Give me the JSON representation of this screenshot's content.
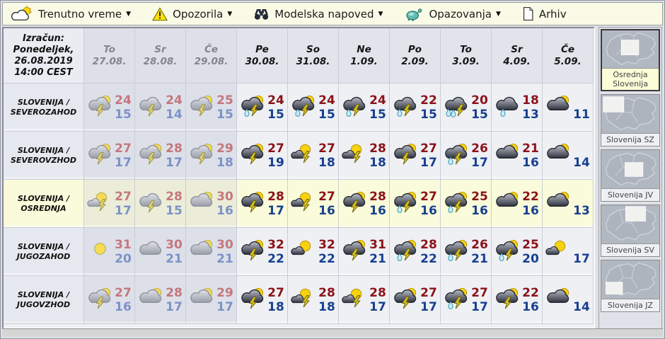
{
  "toolbar": {
    "items": [
      {
        "label": "Trenutno vreme",
        "icon": "sun-cloud-icon",
        "arrow": true
      },
      {
        "label": "Opozorila",
        "icon": "warning-icon",
        "arrow": true
      },
      {
        "label": "Modelska napoved",
        "icon": "binoculars-icon",
        "arrow": true
      },
      {
        "label": "Opazovanja",
        "icon": "observations-icon",
        "arrow": true
      },
      {
        "label": "Arhiv",
        "icon": "document-icon",
        "arrow": false
      }
    ]
  },
  "forecast": {
    "calc": {
      "lines": [
        "Izračun:",
        "Ponedeljek,",
        "26.08.2019",
        "14:00 CEST"
      ]
    },
    "days": [
      {
        "name": "To",
        "date": "27.08.",
        "past": true
      },
      {
        "name": "Sr",
        "date": "28.08.",
        "past": true
      },
      {
        "name": "Če",
        "date": "29.08.",
        "past": true
      },
      {
        "name": "Pe",
        "date": "30.08.",
        "past": false
      },
      {
        "name": "So",
        "date": "31.08.",
        "past": false
      },
      {
        "name": "Ne",
        "date": "1.09.",
        "past": false
      },
      {
        "name": "Po",
        "date": "2.09.",
        "past": false
      },
      {
        "name": "To",
        "date": "3.09.",
        "past": false
      },
      {
        "name": "Sr",
        "date": "4.09.",
        "past": false
      },
      {
        "name": "Če",
        "date": "5.09.",
        "past": false
      }
    ],
    "rows": [
      {
        "region": "SLOVENIJA / SEVEROZAHOD",
        "highlight": false,
        "cells": [
          {
            "icon": "cloud-sun-lightning",
            "hi": 24,
            "lo": 15
          },
          {
            "icon": "cloud-lightning",
            "hi": 24,
            "lo": 14
          },
          {
            "icon": "cloud-sun-lightning",
            "hi": 25,
            "lo": 15
          },
          {
            "icon": "cloud-sun-rain-lightning",
            "hi": 24,
            "lo": 15
          },
          {
            "icon": "cloud-sun-rain-lightning",
            "hi": 24,
            "lo": 15
          },
          {
            "icon": "cloud-rain-lightning",
            "hi": 24,
            "lo": 15
          },
          {
            "icon": "cloud-rain-lightning",
            "hi": 22,
            "lo": 15
          },
          {
            "icon": "cloud-heavy-rain-lightning",
            "hi": 20,
            "lo": 15
          },
          {
            "icon": "cloud-rain",
            "hi": 18,
            "lo": 13
          },
          {
            "icon": "cloud-sun",
            "hi": null,
            "lo": 11
          }
        ]
      },
      {
        "region": "SLOVENIJA / SEVEROVZHOD",
        "highlight": false,
        "cells": [
          {
            "icon": "cloud-sun-lightning",
            "hi": 27,
            "lo": 17
          },
          {
            "icon": "cloud-sun-lightning",
            "hi": 28,
            "lo": 17
          },
          {
            "icon": "cloud-sun-lightning",
            "hi": 29,
            "lo": 18
          },
          {
            "icon": "cloud-sun-lightning",
            "hi": 27,
            "lo": 19
          },
          {
            "icon": "sun-cloud-lightning",
            "hi": 27,
            "lo": 18
          },
          {
            "icon": "sun-cloud-lightning",
            "hi": 28,
            "lo": 18
          },
          {
            "icon": "cloud-sun-lightning",
            "hi": 27,
            "lo": 17
          },
          {
            "icon": "cloud-sun-rain-lightning",
            "hi": 26,
            "lo": 17
          },
          {
            "icon": "cloud-sun",
            "hi": 21,
            "lo": 16
          },
          {
            "icon": "cloud-sun",
            "hi": null,
            "lo": 14
          }
        ]
      },
      {
        "region": "SLOVENIJA / OSREDNJA",
        "highlight": true,
        "cells": [
          {
            "icon": "sun-cloud-lightning",
            "hi": 27,
            "lo": 17
          },
          {
            "icon": "cloud-lightning",
            "hi": 28,
            "lo": 15
          },
          {
            "icon": "cloud-sun",
            "hi": 30,
            "lo": 16
          },
          {
            "icon": "cloud-sun-lightning",
            "hi": 28,
            "lo": 17
          },
          {
            "icon": "sun-cloud-lightning",
            "hi": 27,
            "lo": 16
          },
          {
            "icon": "cloud-sun-lightning",
            "hi": 28,
            "lo": 16
          },
          {
            "icon": "cloud-sun-rain-lightning",
            "hi": 27,
            "lo": 16
          },
          {
            "icon": "cloud-sun-rain-lightning",
            "hi": 25,
            "lo": 16
          },
          {
            "icon": "cloud-sun",
            "hi": 22,
            "lo": 16
          },
          {
            "icon": "cloud-sun",
            "hi": null,
            "lo": 13
          }
        ]
      },
      {
        "region": "SLOVENIJA / JUGOZAHOD",
        "highlight": false,
        "cells": [
          {
            "icon": "sun",
            "hi": 31,
            "lo": 20
          },
          {
            "icon": "cloud",
            "hi": 30,
            "lo": 21
          },
          {
            "icon": "cloud-sun",
            "hi": 30,
            "lo": 21
          },
          {
            "icon": "cloud-sun-lightning",
            "hi": 32,
            "lo": 22
          },
          {
            "icon": "sun-cloud",
            "hi": 32,
            "lo": 22
          },
          {
            "icon": "cloud-sun-lightning",
            "hi": 31,
            "lo": 21
          },
          {
            "icon": "cloud-sun-rain-lightning",
            "hi": 28,
            "lo": 22
          },
          {
            "icon": "cloud-sun-rain-lightning",
            "hi": 26,
            "lo": 21
          },
          {
            "icon": "cloud-sun-rain-lightning",
            "hi": 25,
            "lo": 20
          },
          {
            "icon": "sun-cloud",
            "hi": null,
            "lo": 17
          }
        ]
      },
      {
        "region": "SLOVENIJA / JUGOVZHOD",
        "highlight": false,
        "cells": [
          {
            "icon": "cloud-sun-lightning",
            "hi": 27,
            "lo": 16
          },
          {
            "icon": "cloud-sun",
            "hi": 28,
            "lo": 17
          },
          {
            "icon": "cloud-sun",
            "hi": 29,
            "lo": 17
          },
          {
            "icon": "cloud-sun-lightning",
            "hi": 27,
            "lo": 18
          },
          {
            "icon": "sun-cloud-lightning",
            "hi": 28,
            "lo": 18
          },
          {
            "icon": "sun-cloud-lightning",
            "hi": 28,
            "lo": 17
          },
          {
            "icon": "cloud-sun-lightning",
            "hi": 27,
            "lo": 17
          },
          {
            "icon": "cloud-sun-rain-lightning",
            "hi": 27,
            "lo": 17
          },
          {
            "icon": "cloud-sun-lightning",
            "hi": 22,
            "lo": 16
          },
          {
            "icon": "cloud-sun",
            "hi": null,
            "lo": 14
          }
        ]
      }
    ]
  },
  "sidebar": {
    "maps": [
      {
        "label": "Osrednja Slovenija",
        "selected": true,
        "region": "center"
      },
      {
        "label": "Slovenija SZ",
        "selected": false,
        "region": "nw"
      },
      {
        "label": "Slovenija JV",
        "selected": false,
        "region": "se"
      },
      {
        "label": "Slovenija SV",
        "selected": false,
        "region": "ne"
      },
      {
        "label": "Slovenija JZ",
        "selected": false,
        "region": "sw"
      }
    ]
  },
  "colors": {
    "temp_high": "#8c1219",
    "temp_low": "#17408f",
    "temp_high_past": "#c4777d",
    "temp_low_past": "#7b92c8",
    "highlight_row": "#f9fbda",
    "highlight_row_past": "#ebedd8",
    "toolbar_bg": "#fafbe6",
    "selected_map_label_bg": "#fbfcd8"
  }
}
